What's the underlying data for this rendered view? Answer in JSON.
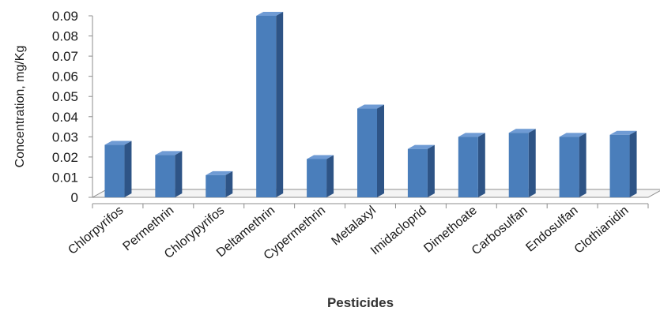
{
  "chart_data": {
    "type": "bar",
    "style": "3d-column",
    "categories": [
      "Chlorpyrifos",
      "Permethrin",
      "Chlorypyrifos",
      "Deltamethrin",
      "Cypermethrin",
      "Metalaxyl",
      "Imidacloprid",
      "Dimethoate",
      "Carbosulfan",
      "Endosulfan",
      "Clothianidin"
    ],
    "values": [
      0.026,
      0.021,
      0.011,
      0.09,
      0.019,
      0.044,
      0.024,
      0.03,
      0.032,
      0.03,
      0.031
    ],
    "yticks": [
      "0",
      "0.01",
      "0.02",
      "0.03",
      "0.04",
      "0.05",
      "0.06",
      "0.07",
      "0.08",
      "0.09"
    ],
    "xlabel": "Pesticides",
    "ylabel": "Concentration, mg/Kg",
    "ylim": [
      0,
      0.09
    ],
    "grid": false,
    "legend": "none",
    "colors": {
      "bar_front": "#4a7ebb",
      "bar_side": "#2e5486",
      "bar_top": "#6f9bd4",
      "axis": "#8c8c8c"
    }
  }
}
